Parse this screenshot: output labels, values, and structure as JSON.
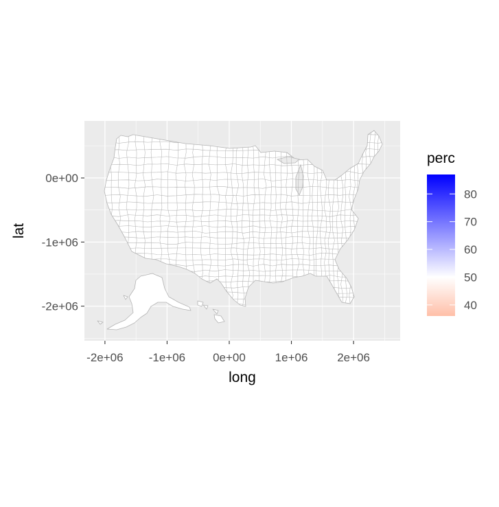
{
  "map": {
    "x_label": "long",
    "y_label": "lat",
    "x_ticks": [
      {
        "value": -2000000,
        "label": "-2e+06"
      },
      {
        "value": -1000000,
        "label": "-1e+06"
      },
      {
        "value": 0,
        "label": "0e+00"
      },
      {
        "value": 1000000,
        "label": "1e+06"
      },
      {
        "value": 2000000,
        "label": "2e+06"
      }
    ],
    "y_ticks": [
      {
        "value": 0,
        "label": "0e+00"
      },
      {
        "value": -1000000,
        "label": "-1e+06"
      },
      {
        "value": -2000000,
        "label": "-2e+06"
      }
    ],
    "xlim": [
      -2330000,
      2750000
    ],
    "ylim": [
      -2540000,
      890000
    ],
    "panel_background": "#ebebeb",
    "gridline_color": "#ffffff",
    "boundary_color": "#b3b3b3",
    "fill_color": "#ffffff"
  },
  "legend": {
    "title": "perc",
    "range": [
      36,
      87
    ],
    "midpoint": 50,
    "colors": {
      "low": "#ffbfa8",
      "mid": "#ffffff",
      "high": "#0000ff"
    },
    "breaks": [
      {
        "value": 80,
        "label": "80"
      },
      {
        "value": 70,
        "label": "70"
      },
      {
        "value": 60,
        "label": "60"
      },
      {
        "value": 50,
        "label": "50"
      },
      {
        "value": 40,
        "label": "40"
      }
    ]
  }
}
